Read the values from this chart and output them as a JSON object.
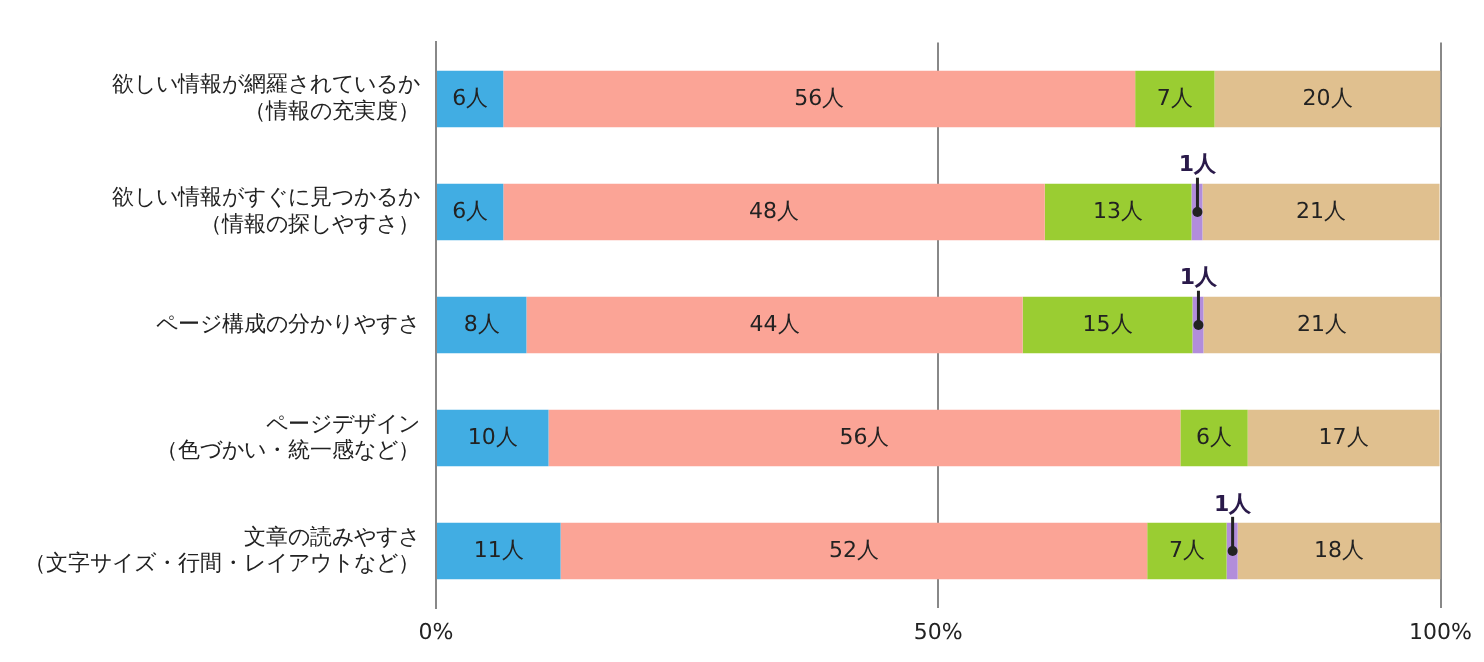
{
  "chart_data": {
    "type": "bar",
    "orientation": "horizontal",
    "stacked": true,
    "grid": "x",
    "legend": false,
    "categories": [
      "欲しい情報が網羅されているか（情報の充実度）",
      "欲しい情報がすぐに見つかるか（情報の探しやすさ）",
      "ページ構成の分かりやすさ",
      "ページデザイン（色づかい・統一感など）",
      "文章の読みやすさ（文字サイズ・行間・レイアウトなど）"
    ],
    "xlim": [
      0,
      100
    ],
    "xticks": [
      {
        "value": 0,
        "label": "0%"
      },
      {
        "value": 50,
        "label": "50%"
      },
      {
        "value": 100,
        "label": "100%"
      }
    ],
    "series": [
      {
        "color": "#41ade3",
        "values": [
          6.7,
          6.7,
          9.0,
          11.2,
          12.4
        ]
      },
      {
        "color": "#fba496",
        "values": [
          62.9,
          53.9,
          49.4,
          62.9,
          58.4
        ]
      },
      {
        "color": "#9acd32",
        "values": [
          7.9,
          14.6,
          16.9,
          6.7,
          7.9
        ]
      },
      {
        "color": "#b28ddb",
        "values": [
          null,
          1.1,
          1.1,
          null,
          1.1
        ]
      },
      {
        "color": "#e0c08f",
        "values": [
          22.5,
          23.6,
          23.6,
          19.1,
          20.2
        ]
      }
    ],
    "annotations": [
      "6人",
      "56人",
      "7人",
      "20人",
      "6人",
      "48人",
      "13人",
      {
        "text": "1人",
        "x": 75.8,
        "y": "欲しい情報がすぐに見つかるか（情報の探しやすさ）"
      },
      "21人",
      "8人",
      "44人",
      "15人",
      {
        "text": "1人",
        "x": 75.9,
        "y": "ページ構成の分かりやすさ"
      },
      "21人",
      "10人",
      "56人",
      "6人",
      "17人",
      "11人",
      "52人",
      "7人",
      {
        "text": "1人",
        "x": 79.3,
        "y": "文章の読みやすさ（文字サイズ・行間・レイアウトなど）"
      },
      "18人"
    ]
  }
}
